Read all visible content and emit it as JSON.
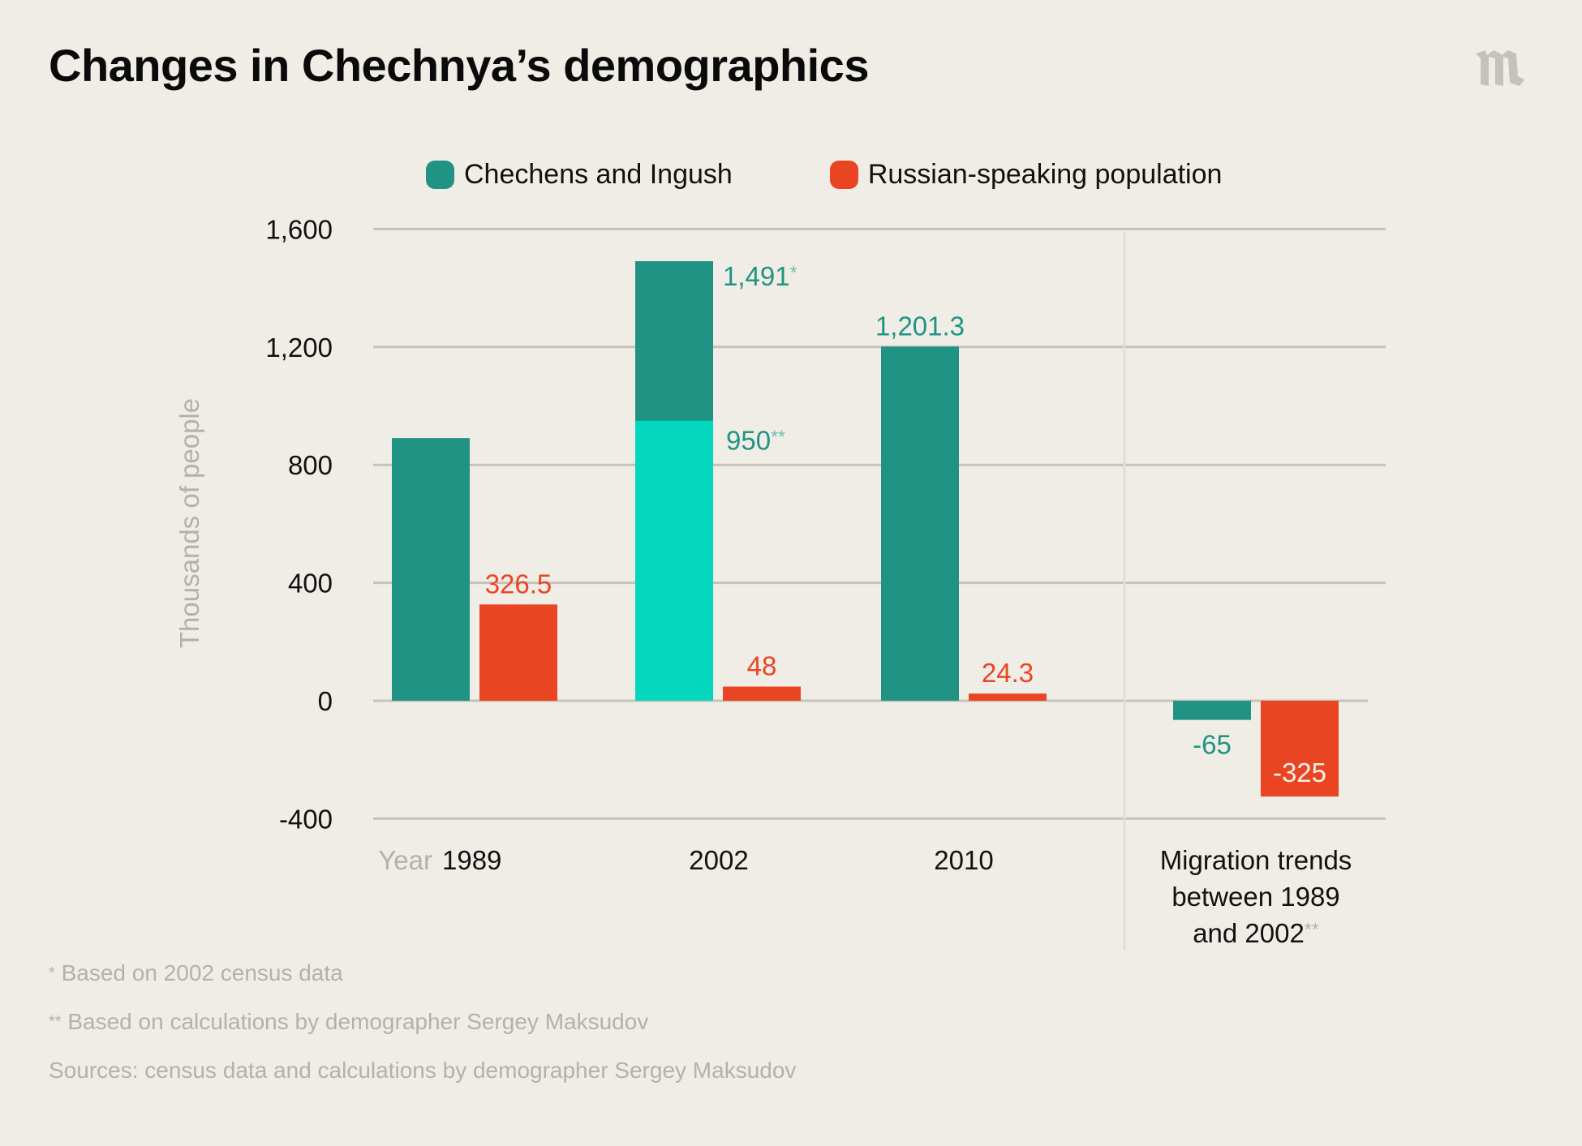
{
  "header": {
    "title": "Changes in Chechnya’s demographics",
    "logo_icon": "meduza-m-logo"
  },
  "legend": [
    {
      "label": "Chechens and Ingush",
      "color": "#209384"
    },
    {
      "label": "Russian-speaking population",
      "color": "#ea4523"
    }
  ],
  "colors": {
    "chechens": "#209384",
    "chechens_light": "#03d8bf",
    "russian": "#ea4523",
    "grid": "#c6c2ba",
    "axis_title": "#b3b1ab",
    "tick": "#111111",
    "asterisk_teal": "#6fbdb2",
    "asterisk_gray": "#b3b1ab"
  },
  "chart_data": {
    "type": "bar",
    "title": "Changes in Chechnya’s demographics",
    "ylabel": "Thousands of people",
    "xlabel": "Year",
    "ylim": [
      -400,
      1600
    ],
    "yticks": [
      1600,
      1200,
      800,
      400,
      0,
      -400
    ],
    "ytick_labels": [
      "1,600",
      "1,200",
      "800",
      "400",
      "0",
      "-400"
    ],
    "grid": true,
    "legend_position": "top-center",
    "categories": [
      "1989",
      "2002",
      "2010",
      "Migration trends between 1989 and 2002"
    ],
    "category_labels": [
      [
        "1989"
      ],
      [
        "2002"
      ],
      [
        "2010"
      ],
      [
        "Migration trends",
        "between 1989",
        "and 2002"
      ]
    ],
    "category_label_suffix": [
      "",
      "",
      "",
      "**"
    ],
    "series": [
      {
        "name": "Chechens and Ingush",
        "values": [
          891,
          1491,
          1201.3,
          -65
        ],
        "labels": [
          "",
          "1,491",
          "1,201.3",
          "-65"
        ],
        "label_suffix": [
          "",
          "*",
          "",
          ""
        ]
      },
      {
        "name": "Russian-speaking population",
        "values": [
          326.5,
          48,
          24.3,
          -325
        ],
        "labels": [
          "326.5",
          "48",
          "24.3",
          "-325"
        ],
        "label_suffix": [
          "",
          "",
          "",
          ""
        ]
      }
    ],
    "stacked_segment": {
      "category": "2002",
      "series": "Chechens and Ingush",
      "value": 950,
      "label": "950",
      "label_suffix": "**"
    }
  },
  "footnotes": [
    {
      "marker": "*",
      "text": "Based on 2002 census data"
    },
    {
      "marker": "**",
      "text": "Based on calculations by demographer Sergey Maksudov"
    },
    {
      "marker": "",
      "text": "Sources: census data and calculations by demographer Sergey Maksudov"
    }
  ]
}
